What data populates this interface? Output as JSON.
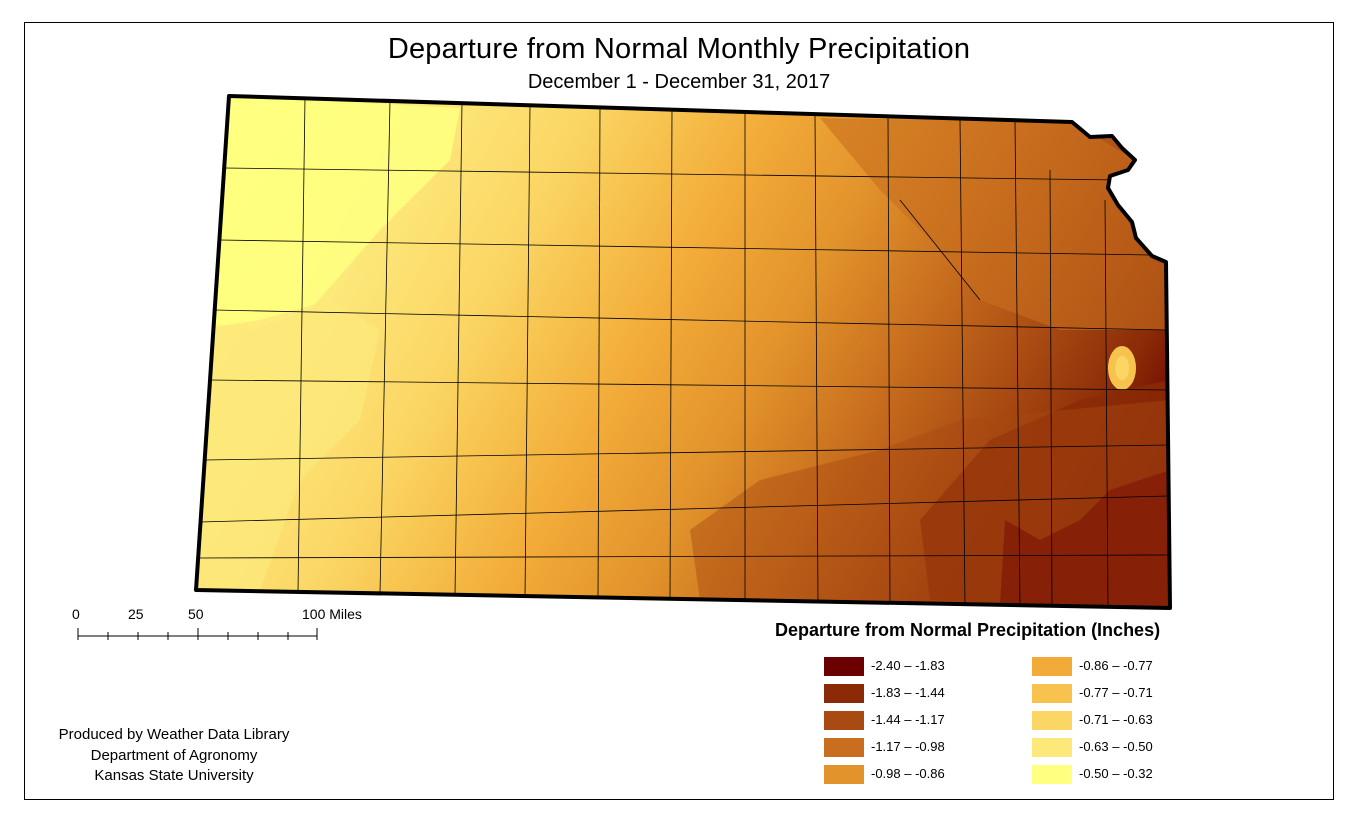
{
  "map": {
    "title": "Departure from Normal Monthly Precipitation",
    "subtitle": "December 1 - December 31, 2017"
  },
  "scale_bar": {
    "labels": [
      "0",
      "25",
      "50",
      "100 Miles"
    ]
  },
  "credits": [
    "Produced by Weather Data Library",
    "Department of Agronomy",
    "Kansas State University"
  ],
  "legend": {
    "title": "Departure from Normal Precipitation (Inches)",
    "items": [
      {
        "label": "-2.40 – -1.83",
        "color": "#6b0000"
      },
      {
        "label": "-1.83 – -1.44",
        "color": "#8a2a07"
      },
      {
        "label": "-1.44 – -1.17",
        "color": "#a84a12"
      },
      {
        "label": "-1.17 – -0.98",
        "color": "#c86e1e"
      },
      {
        "label": "-0.98 – -0.86",
        "color": "#e2932b"
      },
      {
        "label": "-0.86 – -0.77",
        "color": "#f2aa38"
      },
      {
        "label": "-0.77 – -0.71",
        "color": "#f7c34e"
      },
      {
        "label": "-0.71 – -0.63",
        "color": "#fbd665"
      },
      {
        "label": "-0.63 – -0.50",
        "color": "#fde87a"
      },
      {
        "label": "-0.50 – -0.32",
        "color": "#ffff80"
      }
    ]
  }
}
